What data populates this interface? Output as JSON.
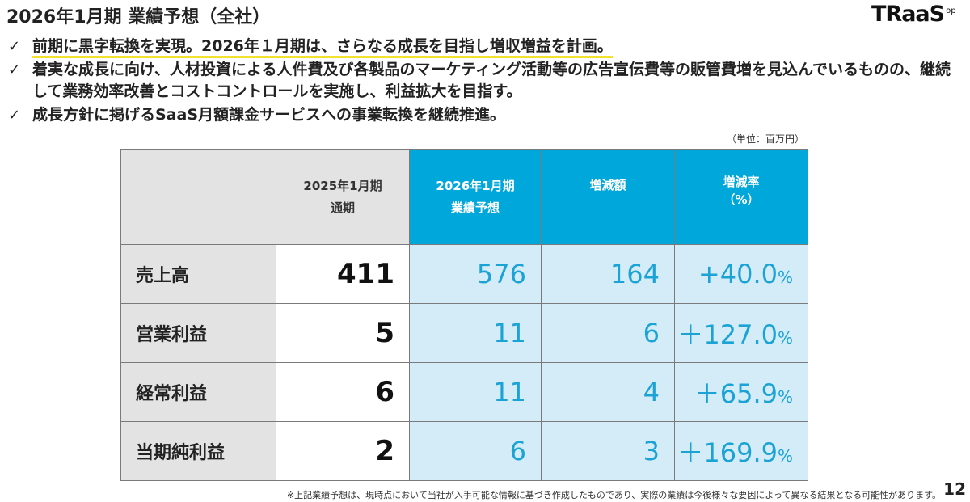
{
  "header": {
    "title": "2026年1月期 業績予想（全社）",
    "logo_text": "TRaaS",
    "logo_sup": "op"
  },
  "bullets": [
    {
      "check": "✓",
      "text": "前期に黒字転換を実現。2026年１月期は、さらなる成長を目指し増収増益を計画。"
    },
    {
      "check": "✓",
      "text": "着実な成長に向け、人材投資による人件費及び各製品のマーケティング活動等の広告宣伝費等の販管費増を見込んでいるものの、継続して業務効率改善とコストコントロールを実施し、利益拡大を目指す。"
    },
    {
      "check": "✓",
      "text": "成長方針に掲げるSaaS月額課金サービスへの事業転換を継続推進。"
    }
  ],
  "unit_label": "（単位：百万円）",
  "table": {
    "headers": [
      {
        "line1": "",
        "line2": ""
      },
      {
        "line1": "2025年1月期",
        "line2": "通期"
      },
      {
        "line1": "2026年1月期",
        "line2": "業績予想"
      },
      {
        "line1": "増減額",
        "line2": ""
      },
      {
        "line1": "増減率",
        "line2": "（%）"
      }
    ],
    "rows": [
      {
        "label": "売上高",
        "prev": "411",
        "forecast": "576",
        "change": "164",
        "rate": "+40.0",
        "rate_unit": "%"
      },
      {
        "label": "営業利益",
        "prev": "5",
        "forecast": "11",
        "change": "6",
        "rate": "＋127.0",
        "rate_unit": "%"
      },
      {
        "label": "経常利益",
        "prev": "6",
        "forecast": "11",
        "change": "4",
        "rate": "＋65.9",
        "rate_unit": "%"
      },
      {
        "label": "当期純利益",
        "prev": "2",
        "forecast": "6",
        "change": "3",
        "rate": "＋169.9",
        "rate_unit": "%"
      }
    ]
  },
  "footnote": "※上記業績予想は、現時点において当社が入手可能な情報に基づき作成したものであり、実際の業績は今後様々な要因によって異なる結果となる可能性があります。",
  "page_number": "12",
  "colors": {
    "header_blue": "#00a7db",
    "cell_blue": "#d4ecf7",
    "value_blue": "#1ba3d6",
    "gray": "#e3e3e3",
    "highlight": "#f2e22e"
  }
}
